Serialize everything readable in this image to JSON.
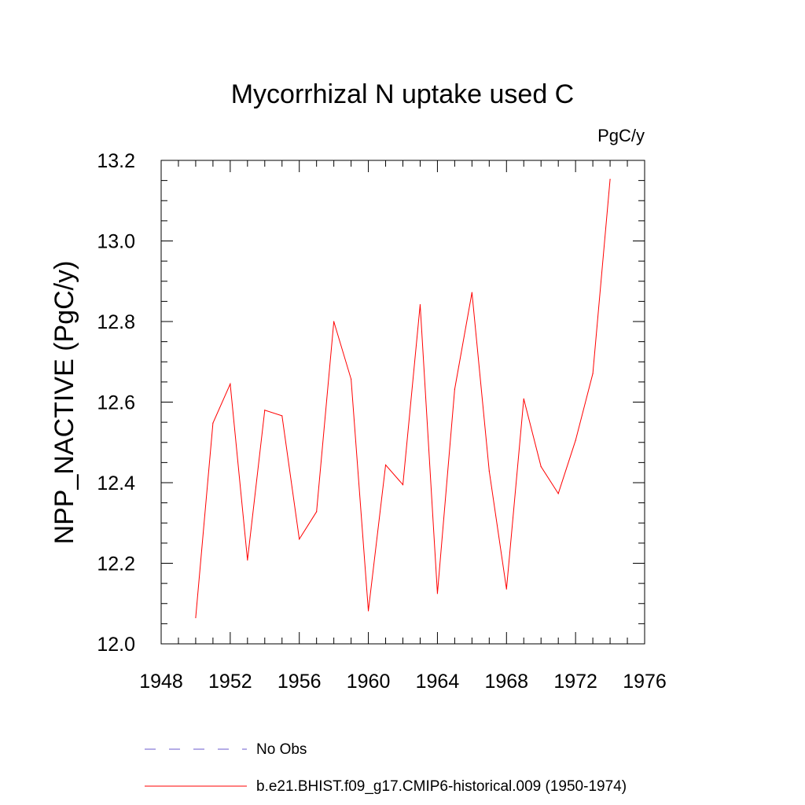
{
  "chart_data": {
    "type": "line",
    "title": "Mycorrhizal N uptake used C",
    "units": "PgC/y",
    "ylabel": "NPP_NACTIVE  (PgC/y)",
    "xlabel": "",
    "xlim": [
      1948,
      1976
    ],
    "ylim": [
      12.0,
      13.2
    ],
    "xticks": [
      "1948",
      "1952",
      "1956",
      "1960",
      "1964",
      "1968",
      "1972",
      "1976"
    ],
    "yticks": [
      "12.0",
      "12.2",
      "12.4",
      "12.6",
      "12.8",
      "13.0",
      "13.2"
    ],
    "grid": false,
    "legend_position": "bottom",
    "legend": [
      {
        "label": "No Obs",
        "color": "#6a5acd",
        "style": "dashed"
      },
      {
        "label": "b.e21.BHIST.f09_g17.CMIP6-historical.009 (1950-1974)",
        "color": "#ff0000",
        "style": "solid"
      }
    ],
    "series": [
      {
        "color": "#ff0000",
        "x": [
          1950,
          1951,
          1952,
          1953,
          1954,
          1955,
          1956,
          1957,
          1958,
          1959,
          1960,
          1961,
          1962,
          1963,
          1964,
          1965,
          1966,
          1967,
          1968,
          1969,
          1970,
          1971,
          1972,
          1973,
          1974
        ],
        "y": [
          12.065,
          12.548,
          12.645,
          12.208,
          12.58,
          12.566,
          12.26,
          12.328,
          12.8,
          12.657,
          12.082,
          12.444,
          12.395,
          12.842,
          12.125,
          12.632,
          12.872,
          12.429,
          12.136,
          12.608,
          12.44,
          12.373,
          12.505,
          12.671,
          13.153
        ]
      }
    ]
  }
}
